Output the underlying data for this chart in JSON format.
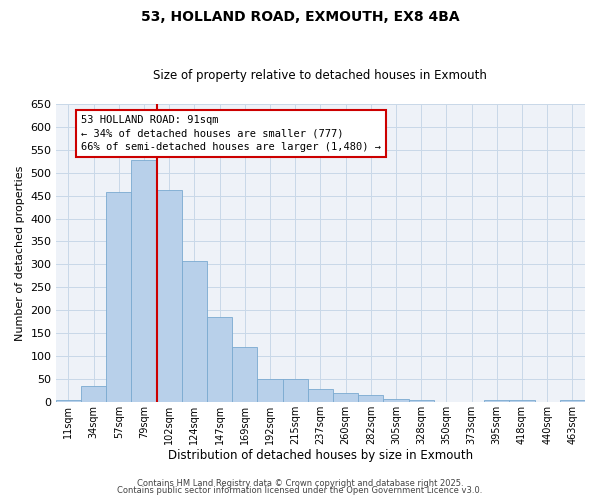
{
  "title": "53, HOLLAND ROAD, EXMOUTH, EX8 4BA",
  "subtitle": "Size of property relative to detached houses in Exmouth",
  "xlabel": "Distribution of detached houses by size in Exmouth",
  "ylabel": "Number of detached properties",
  "bin_labels": [
    "11sqm",
    "34sqm",
    "57sqm",
    "79sqm",
    "102sqm",
    "124sqm",
    "147sqm",
    "169sqm",
    "192sqm",
    "215sqm",
    "237sqm",
    "260sqm",
    "282sqm",
    "305sqm",
    "328sqm",
    "350sqm",
    "373sqm",
    "395sqm",
    "418sqm",
    "440sqm",
    "463sqm"
  ],
  "bar_heights": [
    5,
    35,
    458,
    528,
    463,
    307,
    185,
    120,
    50,
    50,
    27,
    20,
    14,
    7,
    4,
    0,
    0,
    4,
    5,
    0,
    3
  ],
  "bar_color": "#b8d0ea",
  "bar_edgecolor": "#7aaad0",
  "grid_color": "#c8d8e8",
  "vline_x_index": 3,
  "vline_color": "#cc0000",
  "annotation_text": "53 HOLLAND ROAD: 91sqm\n← 34% of detached houses are smaller (777)\n66% of semi-detached houses are larger (1,480) →",
  "annotation_box_edgecolor": "#cc0000",
  "ylim": [
    0,
    650
  ],
  "yticks": [
    0,
    50,
    100,
    150,
    200,
    250,
    300,
    350,
    400,
    450,
    500,
    550,
    600,
    650
  ],
  "footer_line1": "Contains HM Land Registry data © Crown copyright and database right 2025.",
  "footer_line2": "Contains public sector information licensed under the Open Government Licence v3.0.",
  "bg_color": "#ffffff",
  "plot_bg_color": "#eef2f8"
}
